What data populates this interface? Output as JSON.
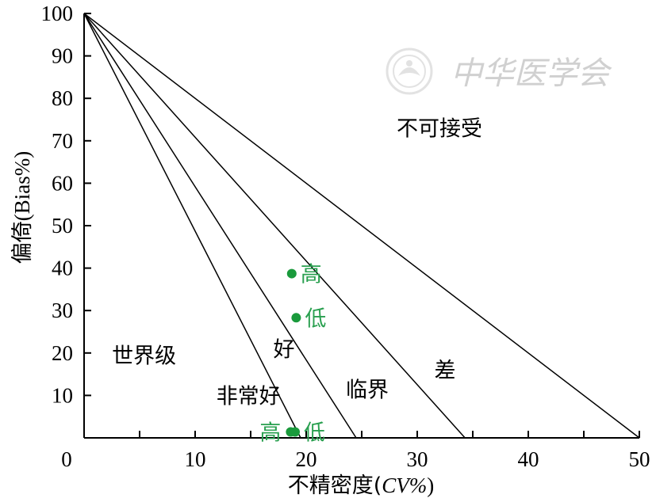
{
  "chart_data": {
    "type": "line",
    "xlabel_main": "不精密度(",
    "xlabel_italic": "CV%",
    "xlabel_close": ")",
    "ylabel_main": "偏倚",
    "ylabel_paren": "(Bias%)",
    "xlim": [
      0,
      50
    ],
    "ylim": [
      0,
      100
    ],
    "x_ticks": [
      0,
      10,
      20,
      30,
      40,
      50
    ],
    "y_ticks": [
      10,
      20,
      30,
      40,
      50,
      60,
      70,
      80,
      90,
      100
    ],
    "lines": [
      {
        "from": [
          0,
          100
        ],
        "to": [
          19.5,
          0
        ]
      },
      {
        "from": [
          0,
          100
        ],
        "to": [
          24.5,
          0
        ]
      },
      {
        "from": [
          0,
          100
        ],
        "to": [
          34.3,
          0
        ]
      },
      {
        "from": [
          0,
          100
        ],
        "to": [
          50,
          0
        ]
      }
    ],
    "regions": [
      {
        "label": "不可接受",
        "x": 32,
        "y": 73
      },
      {
        "label": "差",
        "x": 32.5,
        "y": 16
      },
      {
        "label": "临界",
        "x": 25.5,
        "y": 11.5
      },
      {
        "label": "好",
        "x": 18,
        "y": 21
      },
      {
        "label": "非常好",
        "x": 14.8,
        "y": 10
      },
      {
        "label": "世界级",
        "x": 5.4,
        "y": 19.5
      }
    ],
    "points": [
      {
        "label": "高",
        "x": 18.7,
        "y": 38.7
      },
      {
        "label": "低",
        "x": 19.1,
        "y": 28.3
      },
      {
        "label": "高",
        "x": 18.6,
        "y": 1.4
      },
      {
        "label": "低",
        "x": 19.0,
        "y": 1.4
      }
    ],
    "point_color": "#1a9a3c",
    "label_color": "#2aa050"
  },
  "watermark": {
    "text": "中华医学会"
  }
}
